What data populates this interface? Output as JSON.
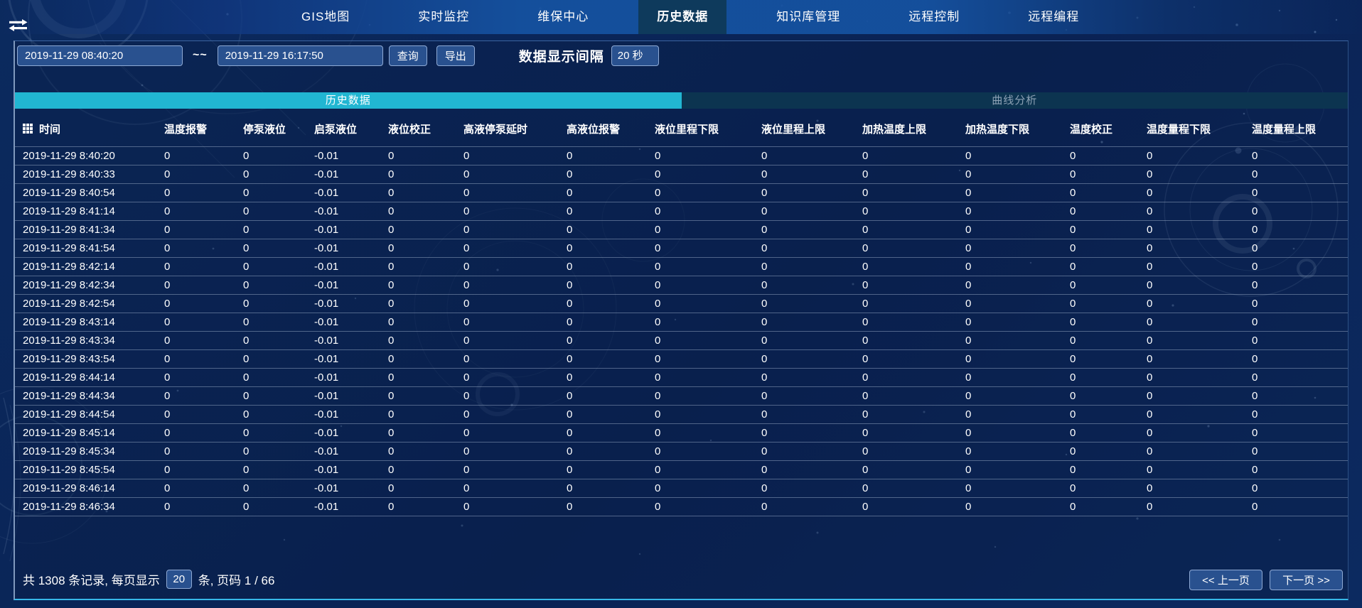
{
  "nav": {
    "items": [
      {
        "label": "GIS地图",
        "active": false
      },
      {
        "label": "实时监控",
        "active": false
      },
      {
        "label": "维保中心",
        "active": false
      },
      {
        "label": "历史数据",
        "active": true
      },
      {
        "label": "知识库管理",
        "active": false
      },
      {
        "label": "远程控制",
        "active": false
      },
      {
        "label": "远程编程",
        "active": false
      }
    ]
  },
  "filter": {
    "start_time": "2019-11-29 08:40:20",
    "range_separator": "~~",
    "end_time": "2019-11-29 16:17:50",
    "query_label": "查询",
    "export_label": "导出",
    "interval_label": "数据显示间隔",
    "interval_value": "20 秒"
  },
  "tabs": [
    {
      "label": "历史数据",
      "active": true
    },
    {
      "label": "曲线分析",
      "active": false
    }
  ],
  "table": {
    "columns": [
      "时间",
      "温度报警",
      "停泵液位",
      "启泵液位",
      "液位校正",
      "高液停泵延时",
      "高液位报警",
      "液位里程下限",
      "液位里程上限",
      "加热温度上限",
      "加热温度下限",
      "温度校正",
      "温度量程下限",
      "温度量程上限"
    ],
    "rows": [
      [
        "2019-11-29 8:40:20",
        "0",
        "0",
        "-0.01",
        "0",
        "0",
        "0",
        "0",
        "0",
        "0",
        "0",
        "0",
        "0",
        "0"
      ],
      [
        "2019-11-29 8:40:33",
        "0",
        "0",
        "-0.01",
        "0",
        "0",
        "0",
        "0",
        "0",
        "0",
        "0",
        "0",
        "0",
        "0"
      ],
      [
        "2019-11-29 8:40:54",
        "0",
        "0",
        "-0.01",
        "0",
        "0",
        "0",
        "0",
        "0",
        "0",
        "0",
        "0",
        "0",
        "0"
      ],
      [
        "2019-11-29 8:41:14",
        "0",
        "0",
        "-0.01",
        "0",
        "0",
        "0",
        "0",
        "0",
        "0",
        "0",
        "0",
        "0",
        "0"
      ],
      [
        "2019-11-29 8:41:34",
        "0",
        "0",
        "-0.01",
        "0",
        "0",
        "0",
        "0",
        "0",
        "0",
        "0",
        "0",
        "0",
        "0"
      ],
      [
        "2019-11-29 8:41:54",
        "0",
        "0",
        "-0.01",
        "0",
        "0",
        "0",
        "0",
        "0",
        "0",
        "0",
        "0",
        "0",
        "0"
      ],
      [
        "2019-11-29 8:42:14",
        "0",
        "0",
        "-0.01",
        "0",
        "0",
        "0",
        "0",
        "0",
        "0",
        "0",
        "0",
        "0",
        "0"
      ],
      [
        "2019-11-29 8:42:34",
        "0",
        "0",
        "-0.01",
        "0",
        "0",
        "0",
        "0",
        "0",
        "0",
        "0",
        "0",
        "0",
        "0"
      ],
      [
        "2019-11-29 8:42:54",
        "0",
        "0",
        "-0.01",
        "0",
        "0",
        "0",
        "0",
        "0",
        "0",
        "0",
        "0",
        "0",
        "0"
      ],
      [
        "2019-11-29 8:43:14",
        "0",
        "0",
        "-0.01",
        "0",
        "0",
        "0",
        "0",
        "0",
        "0",
        "0",
        "0",
        "0",
        "0"
      ],
      [
        "2019-11-29 8:43:34",
        "0",
        "0",
        "-0.01",
        "0",
        "0",
        "0",
        "0",
        "0",
        "0",
        "0",
        "0",
        "0",
        "0"
      ],
      [
        "2019-11-29 8:43:54",
        "0",
        "0",
        "-0.01",
        "0",
        "0",
        "0",
        "0",
        "0",
        "0",
        "0",
        "0",
        "0",
        "0"
      ],
      [
        "2019-11-29 8:44:14",
        "0",
        "0",
        "-0.01",
        "0",
        "0",
        "0",
        "0",
        "0",
        "0",
        "0",
        "0",
        "0",
        "0"
      ],
      [
        "2019-11-29 8:44:34",
        "0",
        "0",
        "-0.01",
        "0",
        "0",
        "0",
        "0",
        "0",
        "0",
        "0",
        "0",
        "0",
        "0"
      ],
      [
        "2019-11-29 8:44:54",
        "0",
        "0",
        "-0.01",
        "0",
        "0",
        "0",
        "0",
        "0",
        "0",
        "0",
        "0",
        "0",
        "0"
      ],
      [
        "2019-11-29 8:45:14",
        "0",
        "0",
        "-0.01",
        "0",
        "0",
        "0",
        "0",
        "0",
        "0",
        "0",
        "0",
        "0",
        "0"
      ],
      [
        "2019-11-29 8:45:34",
        "0",
        "0",
        "-0.01",
        "0",
        "0",
        "0",
        "0",
        "0",
        "0",
        "0",
        "0",
        "0",
        "0"
      ],
      [
        "2019-11-29 8:45:54",
        "0",
        "0",
        "-0.01",
        "0",
        "0",
        "0",
        "0",
        "0",
        "0",
        "0",
        "0",
        "0",
        "0"
      ],
      [
        "2019-11-29 8:46:14",
        "0",
        "0",
        "-0.01",
        "0",
        "0",
        "0",
        "0",
        "0",
        "0",
        "0",
        "0",
        "0",
        "0"
      ],
      [
        "2019-11-29 8:46:34",
        "0",
        "0",
        "-0.01",
        "0",
        "0",
        "0",
        "0",
        "0",
        "0",
        "0",
        "0",
        "0",
        "0"
      ]
    ]
  },
  "pagination": {
    "records_text": "共 1308 条记录, 每页显示",
    "page_size": "20",
    "after_text": "条, 页码 1 / 66",
    "prev_label": "<< 上一页",
    "next_label": "下一页 >>"
  },
  "colors": {
    "accent_cyan": "#21b6d2",
    "nav_blue": "#15519f",
    "control_blue": "#29518f",
    "active_nav_tab": "#0e3a5c"
  }
}
